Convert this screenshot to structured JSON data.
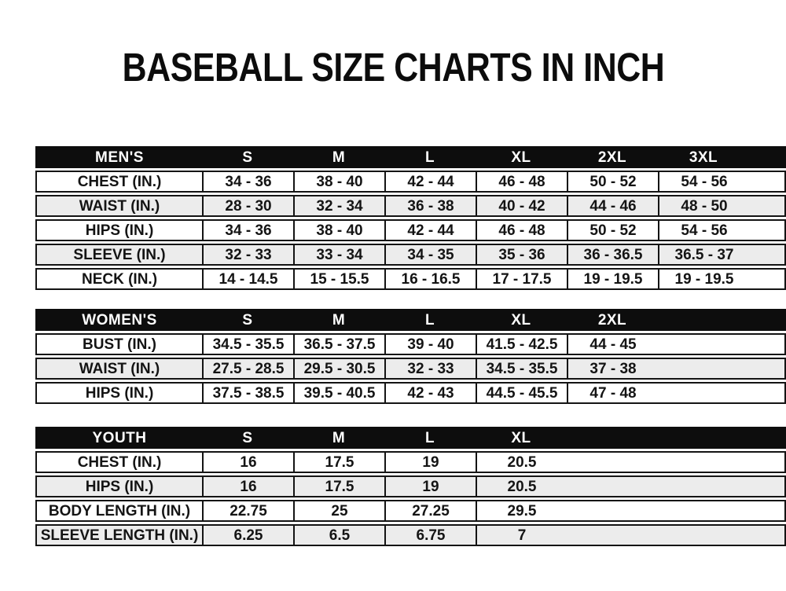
{
  "title": "BASEBALL SIZE CHARTS IN INCH",
  "colors": {
    "header_bg": "#0d0d0d",
    "header_text": "#ffffff",
    "row_alt_bg": "#ececec",
    "border": "#141414",
    "page_bg": "#ffffff"
  },
  "chart_data": [
    {
      "type": "table",
      "name": "MEN'S",
      "columns": [
        "S",
        "M",
        "L",
        "XL",
        "2XL",
        "3XL"
      ],
      "rows": [
        {
          "label": "CHEST (IN.)",
          "values": [
            "34 - 36",
            "38 - 40",
            "42 - 44",
            "46 - 48",
            "50 - 52",
            "54 - 56"
          ]
        },
        {
          "label": "WAIST (IN.)",
          "values": [
            "28 - 30",
            "32 - 34",
            "36 - 38",
            "40 - 42",
            "44 - 46",
            "48 - 50"
          ]
        },
        {
          "label": "HIPS (IN.)",
          "values": [
            "34 - 36",
            "38 - 40",
            "42 - 44",
            "46 - 48",
            "50 - 52",
            "54 - 56"
          ]
        },
        {
          "label": "SLEEVE (IN.)",
          "values": [
            "32 - 33",
            "33 - 34",
            "34 - 35",
            "35 - 36",
            "36 - 36.5",
            "36.5 - 37"
          ]
        },
        {
          "label": "NECK (IN.)",
          "values": [
            "14 - 14.5",
            "15 - 15.5",
            "16 - 16.5",
            "17 - 17.5",
            "19 - 19.5",
            "19 - 19.5"
          ]
        }
      ]
    },
    {
      "type": "table",
      "name": "WOMEN'S",
      "columns": [
        "S",
        "M",
        "L",
        "XL",
        "2XL"
      ],
      "rows": [
        {
          "label": "BUST (IN.)",
          "values": [
            "34.5 - 35.5",
            "36.5 - 37.5",
            "39 - 40",
            "41.5 - 42.5",
            "44 - 45"
          ]
        },
        {
          "label": "WAIST (IN.)",
          "values": [
            "27.5 - 28.5",
            "29.5 - 30.5",
            "32 - 33",
            "34.5 - 35.5",
            "37 - 38"
          ]
        },
        {
          "label": "HIPS (IN.)",
          "values": [
            "37.5 - 38.5",
            "39.5 - 40.5",
            "42 - 43",
            "44.5 - 45.5",
            "47 - 48"
          ]
        }
      ]
    },
    {
      "type": "table",
      "name": "YOUTH",
      "columns": [
        "S",
        "M",
        "L",
        "XL"
      ],
      "rows": [
        {
          "label": "CHEST (IN.)",
          "values": [
            "16",
            "17.5",
            "19",
            "20.5"
          ]
        },
        {
          "label": "HIPS (IN.)",
          "values": [
            "16",
            "17.5",
            "19",
            "20.5"
          ]
        },
        {
          "label": "BODY LENGTH (IN.)",
          "values": [
            "22.75",
            "25",
            "27.25",
            "29.5"
          ]
        },
        {
          "label": "SLEEVE LENGTH (IN.)",
          "values": [
            "6.25",
            "6.5",
            "6.75",
            "7"
          ]
        }
      ]
    }
  ]
}
